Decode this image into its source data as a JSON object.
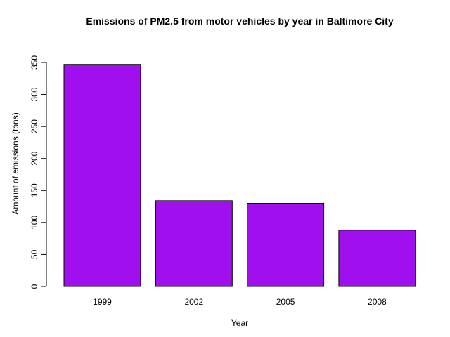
{
  "chart_data": {
    "type": "bar",
    "title": "Emissions of PM2.5 from motor vehicles by year in Baltimore City",
    "xlabel": "Year",
    "ylabel": "Amount of emissions (tons)",
    "categories": [
      "1999",
      "2002",
      "2005",
      "2008"
    ],
    "values": [
      347,
      134,
      130,
      88
    ],
    "ylim": [
      0,
      350
    ],
    "yticks": [
      0,
      50,
      100,
      150,
      200,
      250,
      300,
      350
    ],
    "grid": false,
    "legend": "none",
    "bar_color": "#a010ee",
    "bar_border_color": "#000000"
  }
}
